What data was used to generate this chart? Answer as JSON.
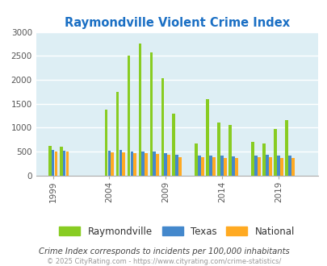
{
  "title": "Raymondville Violent Crime Index",
  "title_color": "#1a6fc4",
  "years": [
    1999,
    2000,
    2001,
    2002,
    2003,
    2004,
    2005,
    2006,
    2007,
    2008,
    2009,
    2010,
    2011,
    2012,
    2013,
    2014,
    2015,
    2016,
    2017,
    2018,
    2019,
    2020,
    2021
  ],
  "raymondville": [
    625,
    600,
    0,
    0,
    0,
    1380,
    1750,
    2500,
    2750,
    2570,
    2040,
    1300,
    0,
    670,
    1600,
    1110,
    1050,
    0,
    700,
    670,
    970,
    1150,
    0
  ],
  "texas": [
    540,
    520,
    0,
    0,
    0,
    520,
    530,
    510,
    510,
    500,
    460,
    430,
    0,
    410,
    420,
    420,
    400,
    0,
    420,
    430,
    410,
    420,
    0
  ],
  "national": [
    500,
    510,
    0,
    0,
    0,
    480,
    480,
    470,
    460,
    450,
    430,
    390,
    0,
    390,
    390,
    370,
    370,
    0,
    380,
    380,
    370,
    370,
    0
  ],
  "colors": {
    "raymondville": "#88cc22",
    "texas": "#4488cc",
    "national": "#ffaa22"
  },
  "ylim": [
    0,
    3000
  ],
  "yticks": [
    0,
    500,
    1000,
    1500,
    2000,
    2500,
    3000
  ],
  "xticks": [
    1999,
    2004,
    2009,
    2014,
    2019
  ],
  "xlim": [
    1997.5,
    2022.5
  ],
  "background_color": "#ddeef4",
  "grid_color": "#ffffff",
  "legend_labels": [
    "Raymondville",
    "Texas",
    "National"
  ],
  "footnote": "Crime Index corresponds to incidents per 100,000 inhabitants",
  "copyright": "© 2025 CityRating.com - https://www.cityrating.com/crime-statistics/",
  "footnote_color": "#444444",
  "copyright_color": "#999999"
}
